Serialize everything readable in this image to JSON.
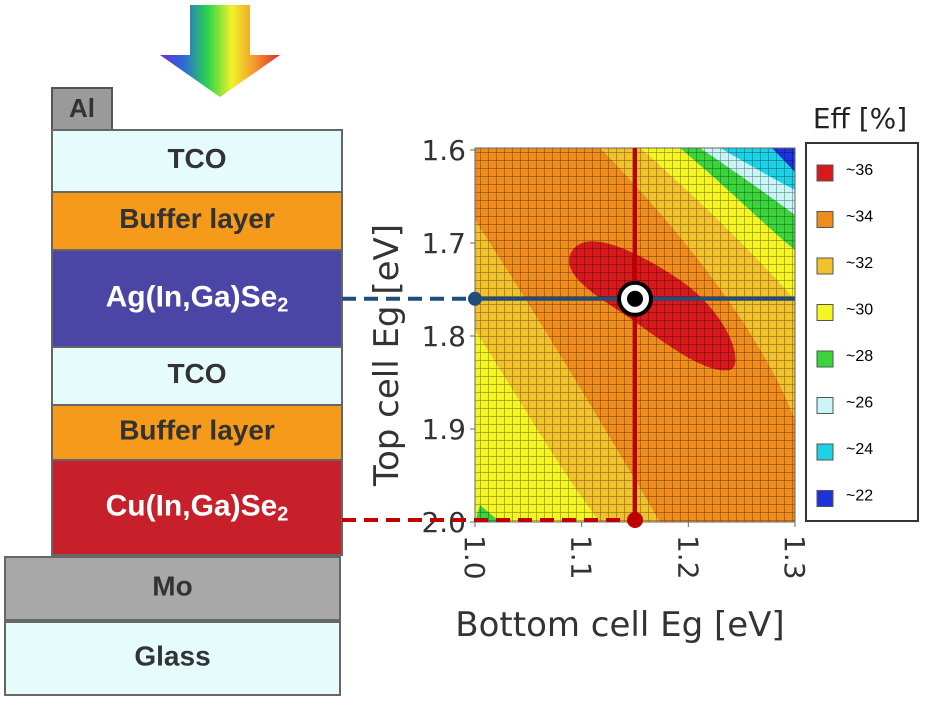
{
  "stack": {
    "top_contact": "Al",
    "layers": [
      {
        "label": "TCO"
      },
      {
        "label": "Buffer layer"
      },
      {
        "label": "Ag(In,Ga)Se",
        "sub": "2"
      },
      {
        "label": "TCO"
      },
      {
        "label": "Buffer layer"
      },
      {
        "label": "Cu(In,Ga)Se",
        "sub": "2"
      },
      {
        "label": "Mo"
      },
      {
        "label": "Glass"
      }
    ]
  },
  "chart_data": {
    "type": "contour",
    "xlabel": "Bottom cell Eg [eV]",
    "ylabel": "Top cell Eg [eV]",
    "xlim": [
      1.0,
      1.3
    ],
    "ylim": [
      2.0,
      1.6
    ],
    "xticks": [
      {
        "value": 1.0,
        "label": "1.0"
      },
      1.1,
      1.2,
      1.3
    ],
    "yticks": [
      1.6,
      1.7,
      1.8,
      1.9,
      {
        "value": 2.0,
        "label": "2.0"
      }
    ],
    "optimum": {
      "x": 1.15,
      "y": 1.76
    },
    "legend_title": "Eff [%]",
    "levels": [
      {
        "label": "~36",
        "color": "#d7191c"
      },
      {
        "label": "~34",
        "color": "#f08c1e"
      },
      {
        "label": "~32",
        "color": "#f2c12e"
      },
      {
        "label": "~30",
        "color": "#f5f526"
      },
      {
        "label": "~28",
        "color": "#3cd43c"
      },
      {
        "label": "~26",
        "color": "#c8f5f5"
      },
      {
        "label": "~24",
        "color": "#1ed2e6"
      },
      {
        "label": "~22",
        "color": "#1e32dc"
      }
    ]
  }
}
